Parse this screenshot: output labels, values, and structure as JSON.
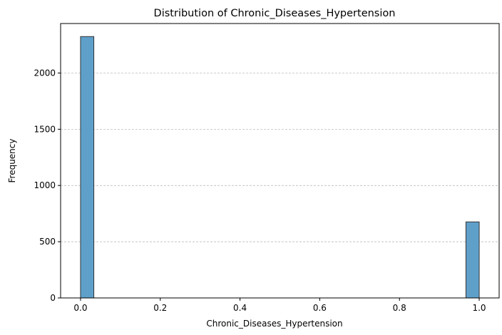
{
  "chart_data": {
    "type": "bar",
    "title": "Distribution of Chronic_Diseases_Hypertension",
    "xlabel": "Chronic_Diseases_Hypertension",
    "ylabel": "Frequency",
    "xlim": [
      -0.05,
      1.05
    ],
    "ylim": [
      0,
      2440
    ],
    "x_ticks": [
      0.0,
      0.2,
      0.4,
      0.6,
      0.8,
      1.0
    ],
    "x_tick_labels": [
      "0.0",
      "0.2",
      "0.4",
      "0.6",
      "0.8",
      "1.0"
    ],
    "y_ticks": [
      0,
      500,
      1000,
      1500,
      2000
    ],
    "y_tick_labels": [
      "0",
      "500",
      "1000",
      "1500",
      "2000"
    ],
    "grid": "y-dashed",
    "bins": [
      {
        "x0": 0.0,
        "x1": 0.0333,
        "count": 2324
      },
      {
        "x0": 0.9667,
        "x1": 1.0,
        "count": 676
      }
    ]
  },
  "colors": {
    "bar_fill": "#5fa0cb",
    "bar_edge": "#333333",
    "grid": "#b0b0b0",
    "axis": "#000000"
  }
}
